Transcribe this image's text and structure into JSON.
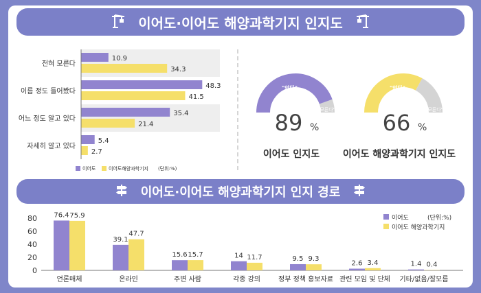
{
  "header": {
    "title": "이어도·이어도 해양과학기지 인지도"
  },
  "section2": {
    "title": "이어도·이어도 해양과학기지 인지 경로"
  },
  "colors": {
    "purple": "#9184cf",
    "yellow": "#f5df6a",
    "banner": "#7b80c8",
    "gray": "#d4d4d4",
    "frame": "#7f86c9"
  },
  "icons": {
    "left1": "crane-icon",
    "right1": "crane-icon",
    "left2": "signpost-icon",
    "right2": "signpost-icon"
  },
  "chart_data": [
    {
      "type": "bar",
      "orientation": "horizontal",
      "categories": [
        "전혀 모른다",
        "이름 정도 들어봤다",
        "어느 정도 알고 있다",
        "자세히 알고 있다"
      ],
      "series": [
        {
          "name": "이어도",
          "values": [
            10.9,
            48.3,
            35.4,
            5.4
          ]
        },
        {
          "name": "이어도해양과학기지",
          "values": [
            34.3,
            41.5,
            21.4,
            2.7
          ]
        }
      ],
      "legend_note": "(단위:%)",
      "legend_position": "bottom-left",
      "xlim": [
        0,
        55
      ]
    },
    {
      "type": "gauge",
      "gauges": [
        {
          "value": 89,
          "unit": "%",
          "label": "이어도 인지도",
          "filled_tag": "\"안다\"",
          "empty_tag": "\"모른다\""
        },
        {
          "value": 66,
          "unit": "%",
          "label": "이어도 해양과학기지 인지도",
          "filled_tag": "\"안다\"",
          "empty_tag": "\"모른다\""
        }
      ]
    },
    {
      "type": "bar",
      "categories": [
        "언론매체",
        "온라인",
        "주변 사람",
        "각종 강의",
        "정부 정책 홍보자료",
        "관련 모임 및 단체",
        "기타/없음/잘모름"
      ],
      "series": [
        {
          "name": "이어도",
          "values": [
            76.4,
            39.1,
            15.6,
            14,
            9.5,
            2.6,
            1.4
          ]
        },
        {
          "name": "이어도 해양과학기지",
          "values": [
            75.9,
            47.7,
            15.7,
            11.7,
            9.3,
            3.4,
            0.4
          ]
        }
      ],
      "legend_note": "(단위:%)",
      "legend_position": "top-right",
      "ylim": [
        0,
        80
      ],
      "yticks": [
        0,
        20,
        40,
        60,
        80
      ],
      "grid": false
    }
  ]
}
